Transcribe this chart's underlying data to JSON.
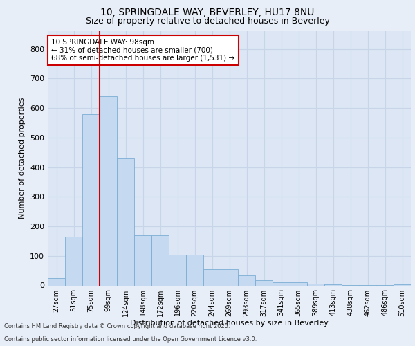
{
  "title_line1": "10, SPRINGDALE WAY, BEVERLEY, HU17 8NU",
  "title_line2": "Size of property relative to detached houses in Beverley",
  "xlabel": "Distribution of detached houses by size in Beverley",
  "ylabel": "Number of detached properties",
  "bar_color": "#c5d9f1",
  "bar_edge_color": "#7AADD4",
  "categories": [
    "27sqm",
    "51sqm",
    "75sqm",
    "99sqm",
    "124sqm",
    "148sqm",
    "172sqm",
    "196sqm",
    "220sqm",
    "244sqm",
    "269sqm",
    "293sqm",
    "317sqm",
    "341sqm",
    "365sqm",
    "389sqm",
    "413sqm",
    "438sqm",
    "462sqm",
    "486sqm",
    "510sqm"
  ],
  "values": [
    25,
    165,
    580,
    640,
    430,
    170,
    170,
    103,
    103,
    55,
    55,
    35,
    18,
    10,
    10,
    5,
    3,
    2,
    1,
    1,
    3
  ],
  "ylim": [
    0,
    860
  ],
  "yticks": [
    0,
    100,
    200,
    300,
    400,
    500,
    600,
    700,
    800
  ],
  "property_bin_index": 3,
  "annotation_text": "10 SPRINGDALE WAY: 98sqm\n← 31% of detached houses are smaller (700)\n68% of semi-detached houses are larger (1,531) →",
  "footnote_line1": "Contains HM Land Registry data © Crown copyright and database right 2025.",
  "footnote_line2": "Contains public sector information licensed under the Open Government Licence v3.0.",
  "background_color": "#e8eef7",
  "plot_background": "#dce6f5",
  "grid_color": "#c8d4e8",
  "vline_color": "#cc0000",
  "annotation_box_color": "#ffffff",
  "annotation_box_edge": "#cc0000",
  "title1_fontsize": 10,
  "title2_fontsize": 9,
  "ylabel_fontsize": 8,
  "xlabel_fontsize": 8,
  "tick_fontsize": 7,
  "annot_fontsize": 7.5
}
